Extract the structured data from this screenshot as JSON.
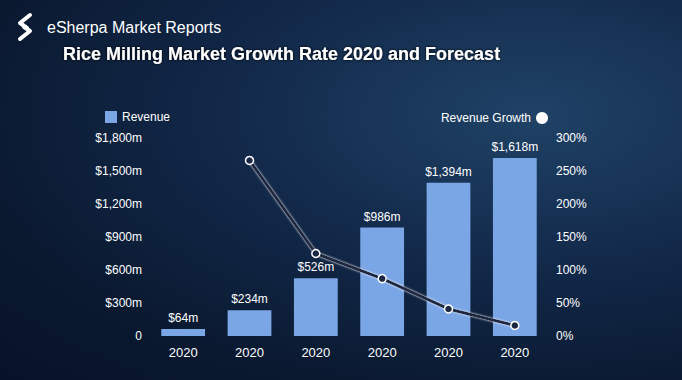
{
  "chart_data": {
    "type": "bar",
    "subtitle": "eSherpa Market Reports",
    "title": "Rice Milling Market Growth Rate 2020 and Forecast",
    "categories": [
      "2020",
      "2020",
      "2020",
      "2020",
      "2020",
      "2020"
    ],
    "series": [
      {
        "name": "Revenue",
        "type": "bar",
        "color": "#7ba6e6",
        "values": [
          64,
          234,
          526,
          986,
          1394,
          1618
        ],
        "value_labels": [
          "$64m",
          "$234m",
          "$526m",
          "$986m",
          "$1,394m",
          "$1,618m"
        ],
        "data_labels": true
      },
      {
        "name": "Revenue Growth",
        "type": "line",
        "axis": "y2",
        "color": "#1a2843",
        "marker": "circle",
        "line_style": "solid",
        "values": [
          null,
          266,
          125,
          87,
          41,
          16
        ]
      }
    ],
    "ylim": [
      0,
      1800
    ],
    "yticks": [
      0,
      {
        "value": 300,
        "label": "$300m"
      },
      {
        "value": 600,
        "label": "$600m"
      },
      {
        "value": 900,
        "label": "$900m"
      },
      {
        "value": 1200,
        "label": "$1,200m"
      },
      {
        "value": 1500,
        "label": "$1,500m"
      },
      {
        "value": 1800,
        "label": "$1,800m"
      }
    ],
    "y2lim": [
      0,
      300
    ],
    "y2ticks": [
      {
        "value": 0,
        "label": "0%"
      },
      {
        "value": 50,
        "label": "50%"
      },
      {
        "value": 100,
        "label": "100%"
      },
      {
        "value": 150,
        "label": "150%"
      },
      {
        "value": 200,
        "label": "200%"
      },
      {
        "value": 250,
        "label": "250%"
      },
      {
        "value": 300,
        "label": "300%"
      }
    ],
    "legend": "top",
    "grid": false
  }
}
